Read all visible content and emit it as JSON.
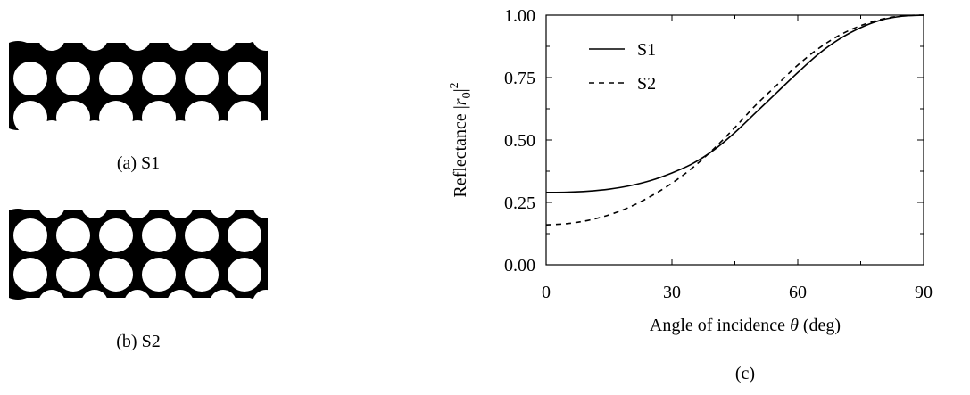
{
  "panels": {
    "a": {
      "caption": "(a) S1"
    },
    "b": {
      "caption": "(b) S2"
    },
    "c": {
      "caption": "(c)"
    }
  },
  "chart_data": {
    "type": "line",
    "title": "",
    "xlabel_prefix": "Angle of incidence ",
    "xlabel_symbol": "θ",
    "xlabel_suffix": " (deg)",
    "ylabel_prefix": "Reflectance |",
    "ylabel_symbol": "r",
    "ylabel_sub": "0",
    "ylabel_suffix": "|",
    "ylabel_sup": "2",
    "xlim": [
      0,
      90
    ],
    "ylim": [
      0,
      1
    ],
    "xticks": [
      0,
      30,
      60,
      90
    ],
    "xtick_labels": [
      "0",
      "30",
      "60",
      "90"
    ],
    "yticks": [
      0,
      0.25,
      0.5,
      0.75,
      1.0
    ],
    "ytick_labels": [
      "0.00",
      "0.25",
      "0.50",
      "0.75",
      "1.00"
    ],
    "grid": false,
    "legend_position": "top-left",
    "series": [
      {
        "name": "S1",
        "style": "solid",
        "x": [
          0,
          5,
          10,
          15,
          20,
          25,
          30,
          35,
          40,
          45,
          50,
          55,
          60,
          65,
          70,
          75,
          80,
          85,
          90
        ],
        "y": [
          0.29,
          0.291,
          0.295,
          0.303,
          0.317,
          0.338,
          0.368,
          0.406,
          0.46,
          0.53,
          0.61,
          0.69,
          0.77,
          0.845,
          0.905,
          0.95,
          0.981,
          0.996,
          1.0
        ]
      },
      {
        "name": "S2",
        "style": "dashed",
        "x": [
          0,
          5,
          10,
          15,
          20,
          25,
          30,
          35,
          40,
          45,
          50,
          55,
          60,
          65,
          70,
          75,
          80,
          85,
          90
        ],
        "y": [
          0.16,
          0.165,
          0.178,
          0.2,
          0.232,
          0.275,
          0.327,
          0.39,
          0.465,
          0.55,
          0.64,
          0.72,
          0.8,
          0.867,
          0.92,
          0.958,
          0.984,
          0.997,
          1.0
        ]
      }
    ]
  }
}
